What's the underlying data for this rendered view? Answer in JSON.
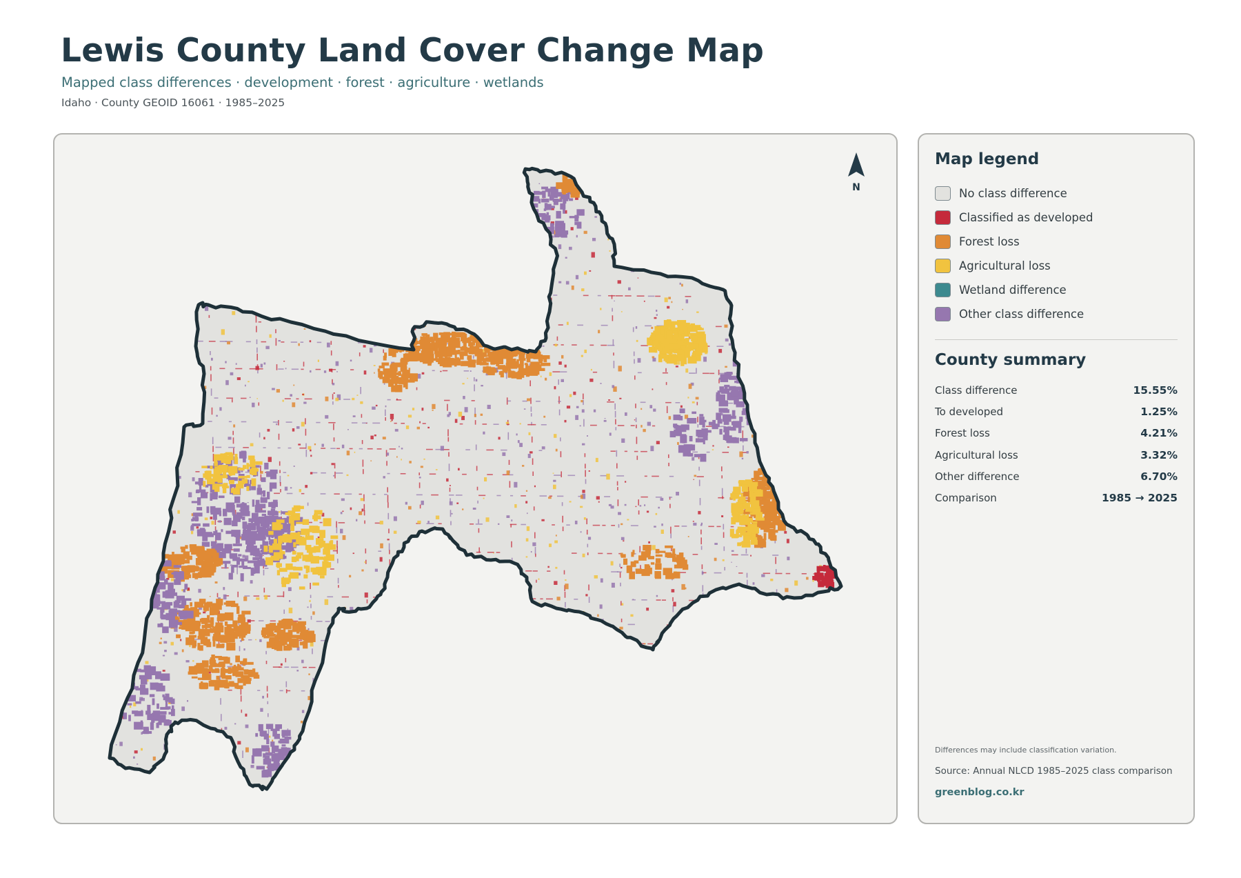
{
  "header": {
    "title": "Lewis County Land Cover Change Map",
    "subtitle": "Mapped class differences · development · forest · agriculture · wetlands",
    "meta": "Idaho · County GEOID 16061 · 1985–2025"
  },
  "map": {
    "north_label": "N",
    "colors": {
      "no_change": "#e2e2df",
      "developed": "#c52a3b",
      "forest_loss": "#e08a35",
      "agricultural_loss": "#f1c33f",
      "wetland": "#3d8a8f",
      "other": "#9677af",
      "outline": "#1e3038",
      "background": "#f3f3f1"
    }
  },
  "legend": {
    "title": "Map legend",
    "items": [
      {
        "label": "No class difference",
        "color": "#e2e2df"
      },
      {
        "label": "Classified as developed",
        "color": "#c52a3b"
      },
      {
        "label": "Forest loss",
        "color": "#e08a35"
      },
      {
        "label": "Agricultural loss",
        "color": "#f1c33f"
      },
      {
        "label": "Wetland difference",
        "color": "#3d8a8f"
      },
      {
        "label": "Other class difference",
        "color": "#9677af"
      }
    ]
  },
  "summary": {
    "title": "County summary",
    "rows": [
      {
        "label": "Class difference",
        "value": "15.55%"
      },
      {
        "label": "To developed",
        "value": "1.25%"
      },
      {
        "label": "Forest loss",
        "value": "4.21%"
      },
      {
        "label": "Agricultural loss",
        "value": "3.32%"
      },
      {
        "label": "Other difference",
        "value": "6.70%"
      },
      {
        "label": "Comparison",
        "value": "1985 → 2025"
      }
    ]
  },
  "footer": {
    "note": "Differences may include classification variation.",
    "source": "Source: Annual NLCD 1985–2025 class comparison",
    "credit": "greenblog.co.kr"
  }
}
